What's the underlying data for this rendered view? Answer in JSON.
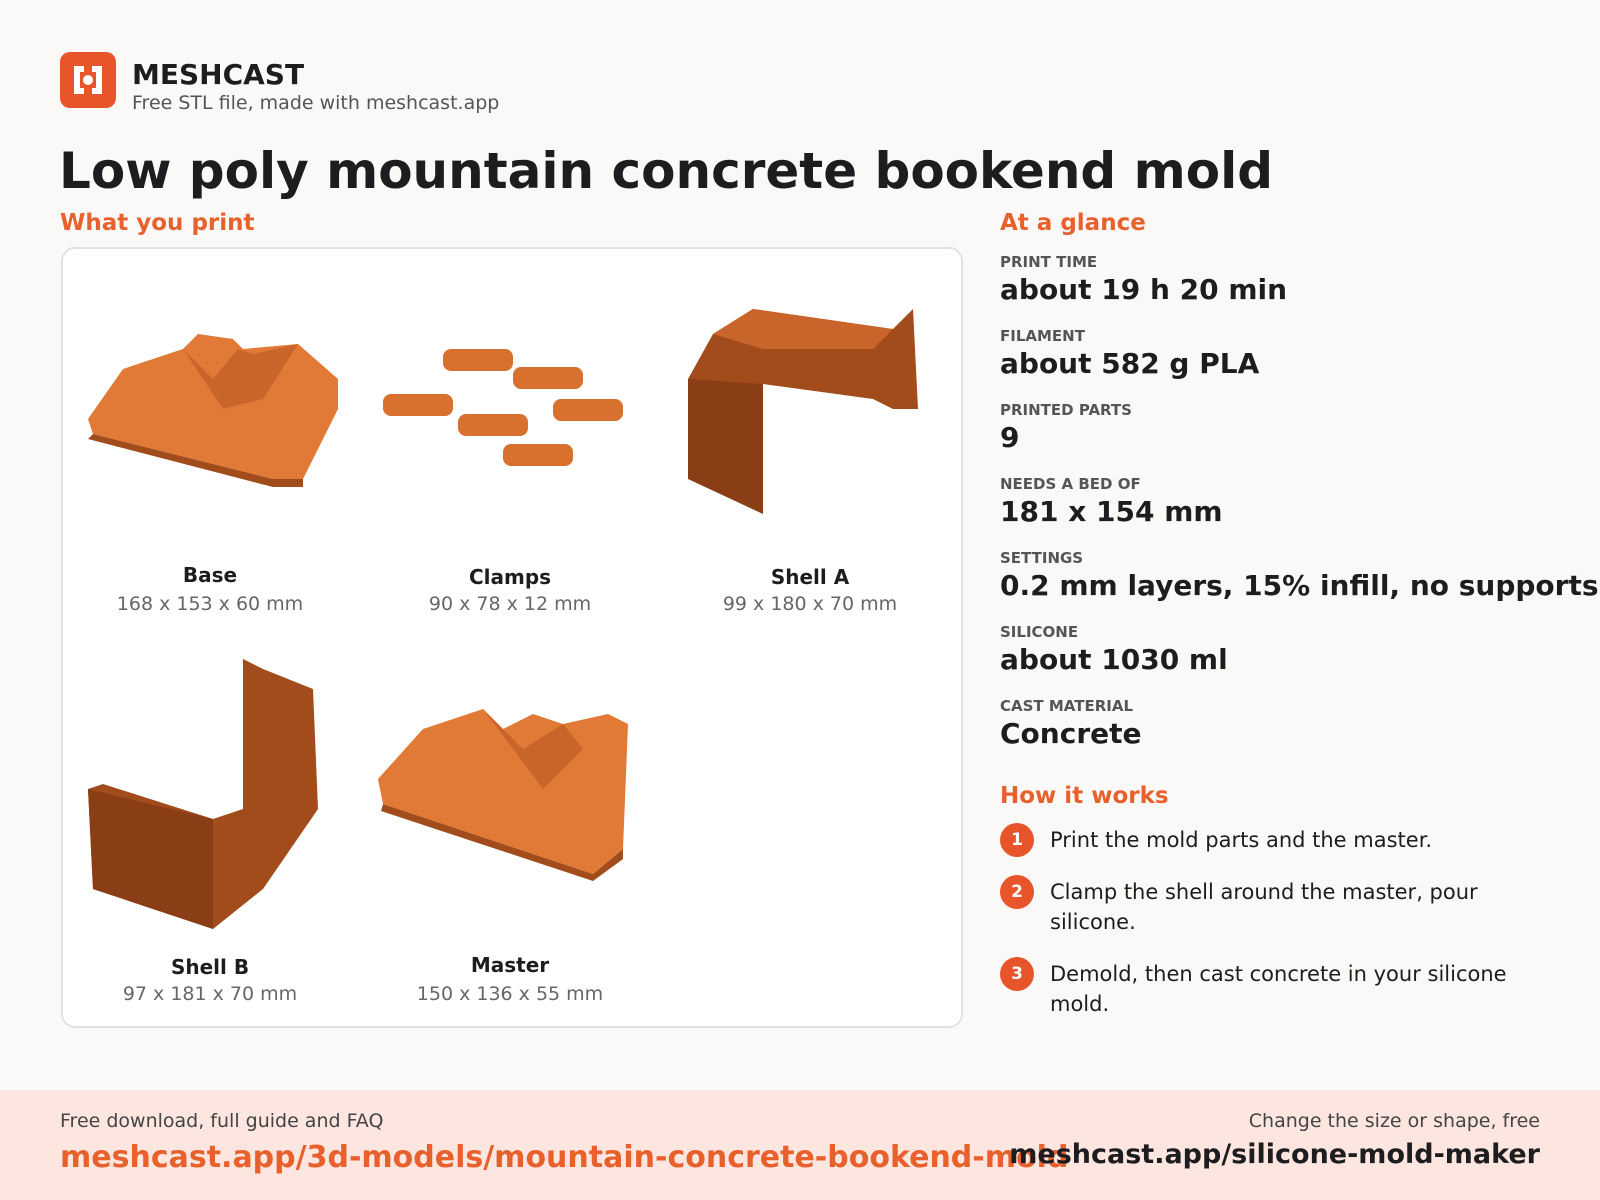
{
  "header": {
    "brand": "MESHCAST",
    "tagline": "Free STL file, made with meshcast.app",
    "title": "Low poly mountain concrete bookend mold"
  },
  "parts": {
    "heading": "What you print",
    "items": [
      {
        "name": "Base",
        "size": "168 x 153 x 60 mm"
      },
      {
        "name": "Clamps",
        "size": "90 x 78 x 12 mm"
      },
      {
        "name": "Shell A",
        "size": "99 x 180 x 70 mm"
      },
      {
        "name": "Shell B",
        "size": "97 x 181 x 70 mm"
      },
      {
        "name": "Master",
        "size": "150 x 136 x 55 mm"
      }
    ]
  },
  "glance": {
    "heading": "At a glance",
    "stats": [
      {
        "label": "PRINT TIME",
        "value": "about 19 h 20 min"
      },
      {
        "label": "FILAMENT",
        "value": "about 582 g PLA"
      },
      {
        "label": "PRINTED PARTS",
        "value": "9"
      },
      {
        "label": "NEEDS A BED OF",
        "value": "181 x 154 mm"
      },
      {
        "label": "SETTINGS",
        "value": "0.2 mm layers, 15% infill, no supports"
      },
      {
        "label": "SILICONE",
        "value": "about 1030 ml"
      },
      {
        "label": "CAST MATERIAL",
        "value": "Concrete"
      }
    ]
  },
  "how": {
    "heading": "How it works",
    "steps": [
      {
        "number": "1",
        "text": "Print the mold parts and the master."
      },
      {
        "number": "2",
        "text": "Clamp the shell around the master, pour silicone."
      },
      {
        "number": "3",
        "text": "Demold, then cast concrete in your silicone mold."
      }
    ]
  },
  "footer": {
    "left_caption": "Free download, full guide and FAQ",
    "left_link": "meshcast.app/3d-models/mountain-concrete-bookend-mold",
    "right_caption": "Change the size or shape, free",
    "right_link": "meshcast.app/silicone-mold-maker"
  }
}
